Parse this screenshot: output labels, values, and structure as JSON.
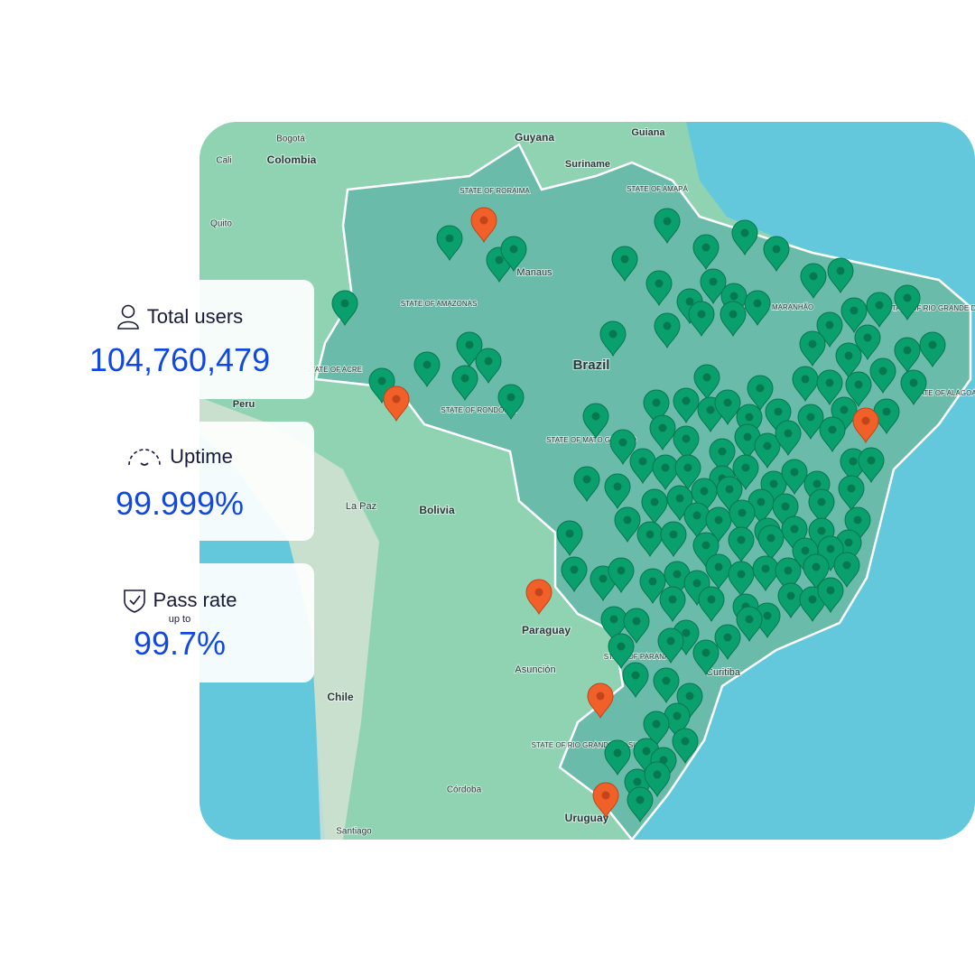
{
  "stats": [
    {
      "label": "Total users",
      "value": "104,760,479"
    },
    {
      "label": "Uptime",
      "value": "99.999%"
    },
    {
      "label": "Pass rate",
      "qualifier": "up to",
      "value": "99.7%"
    }
  ],
  "map": {
    "labels": [
      "Bogotá",
      "Colombia",
      "Cali",
      "Quito",
      "Guyana",
      "Suriname",
      "Guiana",
      "STATE OF RORAIMA",
      "Manaus",
      "STATE OF AMAZONAS",
      "Brazil",
      "STATE OF RONDÔNIA",
      "STATE OF ACRE",
      "Peru",
      "STATE OF MATO GROSSO",
      "Bolivia",
      "La Paz",
      "Paraguay",
      "Asunción",
      "Chile",
      "Córdoba",
      "Santiago",
      "Uruguay",
      "Curitiba",
      "STATE OF AMAPÁ",
      "STATE OF MARANHÃO",
      "STATE OF RIO GRANDE DO NORTE",
      "STATE OF ALAGOAS",
      "STATE OF PARANÁ",
      "STATE OF RIO GRANDE DO SUL"
    ]
  }
}
